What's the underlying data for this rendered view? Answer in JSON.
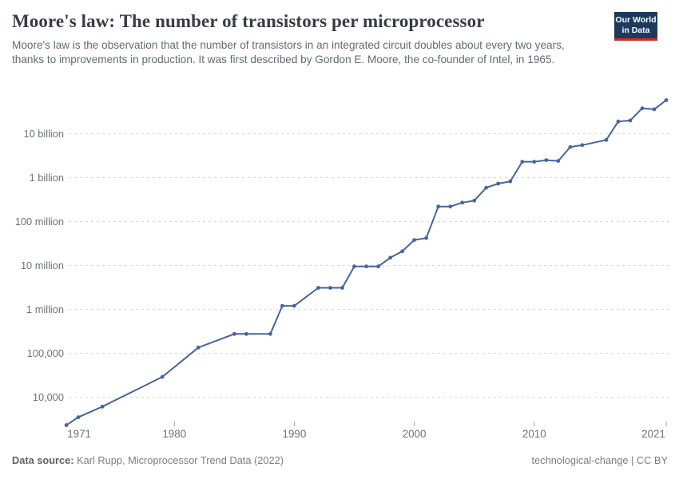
{
  "header": {
    "title": "Moore's law: The number of transistors per microprocessor",
    "subtitle": "Moore's law is the observation that the number of transistors in an integrated circuit doubles about every two years, thanks to improvements in production. It was first described by Gordon E. Moore, the co-founder of Intel, in 1965.",
    "logo": {
      "line1": "Our World",
      "line2": "in Data",
      "bg_color": "#1c3a5e",
      "stripe_color": "#cc2d24"
    }
  },
  "footer": {
    "source_label": "Data source:",
    "source_text": " Karl Rupp, Microprocessor Trend Data (2022)",
    "right_text": "technological-change | CC BY"
  },
  "chart_data": {
    "type": "line",
    "title": "Moore's law: The number of transistors per microprocessor",
    "subtitle": "Moore's law is the observation that the number of transistors in an integrated circuit doubles about every two years, thanks to improvements in production. It was first described by Gordon E. Moore, the co-founder of Intel, in 1965.",
    "y_scale": "log",
    "grid": true,
    "legend": "none",
    "line_color": "#4665a0",
    "grid_color": "#d9d9d9",
    "tick_label_color": "#6e7276",
    "x": [
      1971,
      1972,
      1974,
      1979,
      1982,
      1985,
      1986,
      1988,
      1989,
      1990,
      1992,
      1993,
      1994,
      1995,
      1996,
      1997,
      1998,
      1999,
      2000,
      2001,
      2002,
      2003,
      2004,
      2005,
      2006,
      2007,
      2008,
      2009,
      2010,
      2011,
      2012,
      2013,
      2014,
      2016,
      2017,
      2018,
      2019,
      2020,
      2021
    ],
    "values": [
      2300,
      3500,
      6100,
      29000,
      135000,
      275000,
      275000,
      275000,
      1200000,
      1200000,
      3100000,
      3100000,
      3100000,
      9500000,
      9500000,
      9500000,
      15000000,
      21000000,
      38000000,
      42000000,
      220000000,
      220000000,
      270000000,
      300000000,
      590000000,
      730000000,
      820000000,
      2300000000,
      2300000000,
      2500000000,
      2400000000,
      5000000000,
      5500000000,
      7200000000,
      19000000000,
      20000000000,
      38000000000,
      36000000000,
      58000000000
    ],
    "y_ticks": [
      {
        "value": 10000,
        "label": "10,000"
      },
      {
        "value": 100000,
        "label": "100,000"
      },
      {
        "value": 1000000,
        "label": "1 million"
      },
      {
        "value": 10000000,
        "label": "10 million"
      },
      {
        "value": 100000000,
        "label": "100 million"
      },
      {
        "value": 1000000000,
        "label": "1 billion"
      },
      {
        "value": 10000000000,
        "label": "10 billion"
      }
    ],
    "x_tick_years": [
      1971,
      1980,
      1990,
      2000,
      2010,
      2021
    ],
    "ylim": [
      10000,
      10000000000
    ],
    "xlim": [
      1971,
      2021
    ]
  }
}
